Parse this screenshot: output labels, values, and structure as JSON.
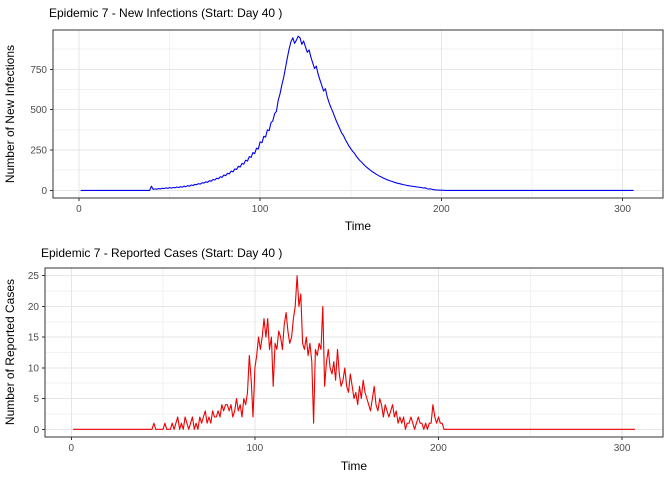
{
  "colors": {
    "background": "#ffffff",
    "grid_major": "#e6e6e6",
    "grid_minor": "#f2f2f2",
    "panel_border": "#333333",
    "tick_label": "#4d4d4d",
    "blue_line": "#0000ee",
    "red_line": "#ee0000"
  },
  "chart_data": [
    {
      "type": "line",
      "title": "Epidemic 7 - New Infections (Start: Day 40 )",
      "xlabel": "Time",
      "ylabel": "Number of New Infections",
      "line_color": "#0000ee",
      "grid": true,
      "legend": "none",
      "x_start": 1,
      "x_step": 1,
      "xticks": [
        0,
        100,
        200,
        300
      ],
      "xticks_minor": [
        50,
        150,
        250
      ],
      "yticks": [
        0,
        250,
        500,
        750
      ],
      "yticks_minor": [
        125,
        375,
        625,
        875
      ],
      "xlim": [
        -14.3,
        322.3
      ],
      "ylim": [
        -47.3,
        993.3
      ],
      "values": [
        0,
        0,
        0,
        0,
        0,
        0,
        0,
        0,
        0,
        0,
        0,
        0,
        0,
        0,
        0,
        0,
        0,
        0,
        0,
        0,
        0,
        0,
        0,
        0,
        0,
        0,
        0,
        0,
        0,
        0,
        0,
        0,
        0,
        0,
        0,
        0,
        0,
        0,
        0,
        26,
        6,
        9,
        7,
        11,
        9,
        13,
        11,
        15,
        13,
        17,
        14,
        18,
        16,
        21,
        18,
        23,
        20,
        26,
        23,
        29,
        26,
        33,
        30,
        37,
        35,
        42,
        39,
        47,
        45,
        53,
        50,
        60,
        57,
        67,
        64,
        75,
        72,
        84,
        81,
        95,
        91,
        106,
        102,
        119,
        115,
        133,
        129,
        149,
        145,
        167,
        162,
        187,
        182,
        209,
        204,
        234,
        228,
        261,
        256,
        300,
        295,
        335,
        330,
        375,
        370,
        420,
        430,
        475,
        490,
        560,
        600,
        655,
        700,
        760,
        820,
        875,
        920,
        945,
        910,
        930,
        955,
        945,
        905,
        925,
        890,
        855,
        870,
        825,
        790,
        755,
        770,
        720,
        685,
        650,
        615,
        630,
        580,
        545,
        515,
        490,
        460,
        430,
        405,
        380,
        355,
        340,
        315,
        295,
        275,
        258,
        242,
        230,
        212,
        198,
        185,
        175,
        162,
        151,
        141,
        132,
        123,
        115,
        108,
        100,
        94,
        87,
        82,
        76,
        71,
        66,
        62,
        58,
        55,
        50,
        47,
        44,
        41,
        38,
        36,
        33,
        31,
        29,
        27,
        25,
        24,
        22,
        21,
        19,
        18,
        14,
        16,
        11,
        8,
        9,
        6,
        4,
        3,
        2,
        1,
        1,
        1,
        0,
        0,
        0,
        0,
        0,
        0,
        0,
        0,
        0,
        0,
        0,
        0,
        0,
        0,
        0,
        0,
        0,
        0,
        0,
        0,
        0,
        0,
        0,
        0,
        0,
        0,
        0,
        0,
        0,
        0,
        0,
        0,
        0,
        0,
        0,
        0,
        0,
        0,
        0,
        0,
        0,
        0,
        0,
        0,
        0,
        0,
        0,
        0,
        0,
        0,
        0,
        0,
        0,
        0,
        0,
        0,
        0,
        0,
        0,
        0,
        0,
        0,
        0,
        0,
        0,
        0,
        0,
        0,
        0,
        0,
        0,
        0,
        0,
        0,
        0,
        0,
        0,
        0,
        0,
        0,
        0,
        0,
        0,
        0,
        0,
        0,
        0,
        0,
        0,
        0,
        0,
        0,
        0,
        0,
        0,
        0,
        0,
        0,
        0,
        0,
        0,
        0,
        0,
        0,
        0
      ]
    },
    {
      "type": "line",
      "title": "Epidemic 7 - Reported Cases (Start: Day 40 )",
      "xlabel": "Time",
      "ylabel": "Number of Reported Cases",
      "line_color": "#ee0000",
      "grid": true,
      "legend": "none",
      "x_start": 1,
      "x_step": 1,
      "xticks": [
        0,
        100,
        200,
        300
      ],
      "xticks_minor": [
        50,
        150,
        250
      ],
      "yticks": [
        0,
        5,
        10,
        15,
        20,
        25
      ],
      "yticks_minor": [
        2.5,
        7.5,
        12.5,
        17.5,
        22.5
      ],
      "xlim": [
        -14.3,
        322.3
      ],
      "ylim": [
        -1.25,
        26.25
      ],
      "values": [
        0,
        0,
        0,
        0,
        0,
        0,
        0,
        0,
        0,
        0,
        0,
        0,
        0,
        0,
        0,
        0,
        0,
        0,
        0,
        0,
        0,
        0,
        0,
        0,
        0,
        0,
        0,
        0,
        0,
        0,
        0,
        0,
        0,
        0,
        0,
        0,
        0,
        0,
        0,
        0,
        0,
        0,
        0,
        0,
        1,
        0,
        0,
        0,
        0,
        0,
        1,
        0,
        0,
        0,
        1,
        0,
        1,
        2,
        0,
        1,
        0,
        2,
        1,
        0,
        1,
        2,
        0,
        1,
        0,
        2,
        1,
        2,
        3,
        1,
        2,
        1,
        3,
        2,
        2,
        3,
        2,
        4,
        3,
        4,
        4,
        3,
        4,
        2,
        3,
        5,
        3,
        4,
        2,
        5,
        4,
        6,
        12,
        8,
        2,
        10,
        12,
        15,
        13,
        15,
        18,
        15,
        18,
        13,
        15,
        7,
        14,
        13,
        16,
        15,
        13,
        17,
        19,
        16,
        14,
        15,
        18,
        20,
        25,
        20,
        22,
        14,
        13,
        15,
        12,
        14,
        11,
        1,
        13,
        12,
        14,
        13,
        20,
        7,
        11,
        13,
        10,
        9,
        11,
        8,
        13,
        9,
        7,
        8,
        10,
        7,
        6,
        9,
        7,
        5,
        6,
        4,
        7,
        5,
        8,
        6,
        5,
        4,
        3,
        5,
        7,
        4,
        3,
        5,
        4,
        2,
        4,
        3,
        2,
        3,
        4,
        2,
        3,
        1,
        2,
        1,
        2,
        0,
        1,
        1,
        2,
        1,
        0,
        1,
        2,
        1,
        1,
        0,
        1,
        0,
        1,
        1,
        4,
        2,
        1,
        2,
        1,
        1,
        0,
        0,
        0,
        0,
        0,
        0,
        0,
        0,
        0,
        0,
        0,
        0,
        0,
        0,
        0,
        0,
        0,
        0,
        0,
        0,
        0,
        0,
        0,
        0,
        0,
        0,
        0,
        0,
        0,
        0,
        0,
        0,
        0,
        0,
        0,
        0,
        0,
        0,
        0,
        0,
        0,
        0,
        0,
        0,
        0,
        0,
        0,
        0,
        0,
        0,
        0,
        0,
        0,
        0,
        0,
        0,
        0,
        0,
        0,
        0,
        0,
        0,
        0,
        0,
        0,
        0,
        0,
        0,
        0,
        0,
        0,
        0,
        0,
        0,
        0,
        0,
        0,
        0,
        0,
        0,
        0,
        0,
        0,
        0,
        0,
        0,
        0,
        0,
        0,
        0,
        0,
        0,
        0,
        0,
        0,
        0,
        0,
        0,
        0,
        0,
        0,
        0,
        0,
        0,
        0
      ]
    }
  ]
}
